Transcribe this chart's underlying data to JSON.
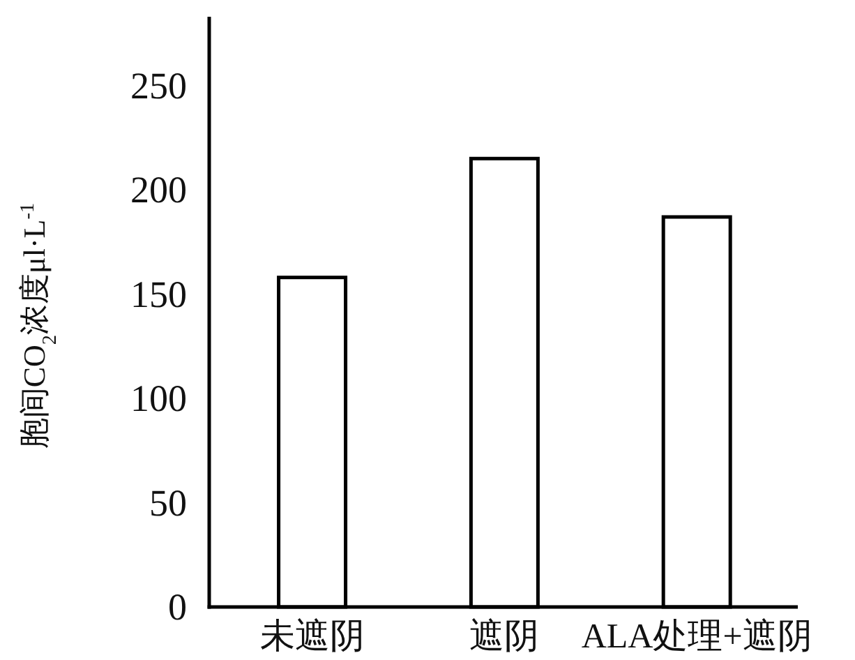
{
  "chart_data": {
    "type": "bar",
    "ylabel": "胞间CO$_{2}$浓度μl·L$^{-1}$",
    "categories": [
      "未遮阴",
      "遮阴",
      "ALA处理+遮阴"
    ],
    "values": [
      158,
      215,
      187
    ],
    "color": "#ffffff",
    "ylim": [
      0,
      283
    ],
    "yticks": [
      0,
      50,
      100,
      150,
      200,
      250
    ],
    "grid": false
  }
}
